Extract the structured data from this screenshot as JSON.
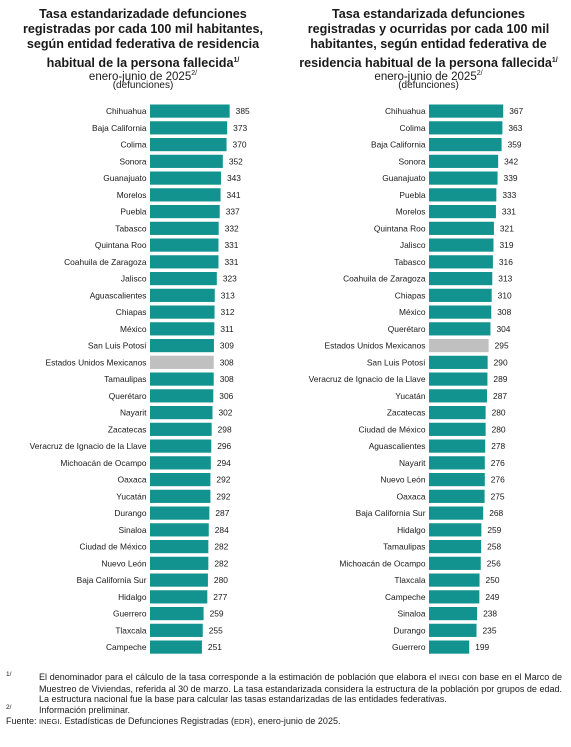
{
  "colors": {
    "bar": "#13938f",
    "highlight": "#c0c0c0"
  },
  "charts": [
    {
      "title_lines": [
        "Tasa estandarizadade defunciones",
        "registradas por cada 100 mil habitantes,",
        "según entidad federativa de residencia",
        "habitual de la persona fallecida"
      ],
      "title_mark": "1/",
      "subtitle": "enero-junio de 2025",
      "subtitle_mark": "2/",
      "unit": "(defunciones)"
    },
    {
      "title_lines": [
        "Tasa estandarizada defunciones",
        "registradas y ocurridas por cada 100 mil",
        "habitantes, según entidad federativa de",
        "residencia habitual de la persona fallecida"
      ],
      "title_mark": "1/",
      "subtitle": "enero-junio de 2025",
      "subtitle_mark": "2/",
      "unit": "(defunciones)"
    }
  ],
  "chart_data": [
    {
      "type": "bar",
      "orientation": "horizontal",
      "highlight": "Estados Unidos Mexicanos",
      "categories": [
        "Chihuahua",
        "Baja California",
        "Colima",
        "Sonora",
        "Guanajuato",
        "Morelos",
        "Puebla",
        "Tabasco",
        "Quintana Roo",
        "Coahuila de Zaragoza",
        "Jalisco",
        "Aguascalientes",
        "Chiapas",
        "México",
        "San Luis Potosí",
        "Estados Unidos Mexicanos",
        "Tamaulipas",
        "Querétaro",
        "Nayarit",
        "Zacatecas",
        "Veracruz de Ignacio de la Llave",
        "Michoacán de Ocampo",
        "Oaxaca",
        "Yucatán",
        "Durango",
        "Sinaloa",
        "Ciudad de México",
        "Nuevo León",
        "Baja California Sur",
        "Hidalgo",
        "Guerrero",
        "Tlaxcala",
        "Campeche"
      ],
      "values": [
        385,
        373,
        370,
        352,
        343,
        341,
        337,
        332,
        331,
        331,
        323,
        313,
        312,
        311,
        309,
        308,
        308,
        306,
        302,
        298,
        296,
        294,
        292,
        292,
        287,
        284,
        282,
        282,
        280,
        277,
        259,
        255,
        251
      ]
    },
    {
      "type": "bar",
      "orientation": "horizontal",
      "highlight": "Estados Unidos Mexicanos",
      "categories": [
        "Chihuahua",
        "Colima",
        "Baja California",
        "Sonora",
        "Guanajuato",
        "Puebla",
        "Morelos",
        "Quintana Roo",
        "Jalisco",
        "Tabasco",
        "Coahuila de Zaragoza",
        "Chiapas",
        "México",
        "Querétaro",
        "Estados Unidos Mexicanos",
        "San Luis Potosí",
        "Veracruz de Ignacio de la Llave",
        "Yucatán",
        "Zacatecas",
        "Ciudad de México",
        "Aguascalientes",
        "Nayarit",
        "Nuevo León",
        "Oaxaca",
        "Baja California Sur",
        "Hidalgo",
        "Tamaulipas",
        "Michoacán de Ocampo",
        "Tlaxcala",
        "Campeche",
        "Sinaloa",
        "Durango",
        "Guerrero"
      ],
      "values": [
        367,
        363,
        359,
        342,
        339,
        333,
        331,
        321,
        319,
        316,
        313,
        310,
        308,
        304,
        295,
        290,
        289,
        287,
        280,
        280,
        278,
        276,
        276,
        275,
        268,
        259,
        258,
        256,
        250,
        249,
        238,
        235,
        199
      ]
    }
  ],
  "notes": [
    {
      "mark": "1/",
      "before": "El denominador para el cálculo de la tasa corresponde a la estimación de población que elabora el ",
      "org": "INEGI",
      "after": " con base en el Marco de Muestreo de Viviendas, referida al 30 de marzo. La tasa estandarizada considera la estructura de la población por grupos de edad. La estructura nacional fue la base para calcular las tasas estandarizadas de las entidades federativas."
    },
    {
      "mark": "2/",
      "text": "Información preliminar."
    }
  ],
  "source": {
    "prefix": "Fuente: ",
    "org": "INEGI",
    "middle": ". Estadísticas de Defunciones Registradas (",
    "abbr": "EDR",
    "suffix": "), enero-junio de 2025."
  }
}
